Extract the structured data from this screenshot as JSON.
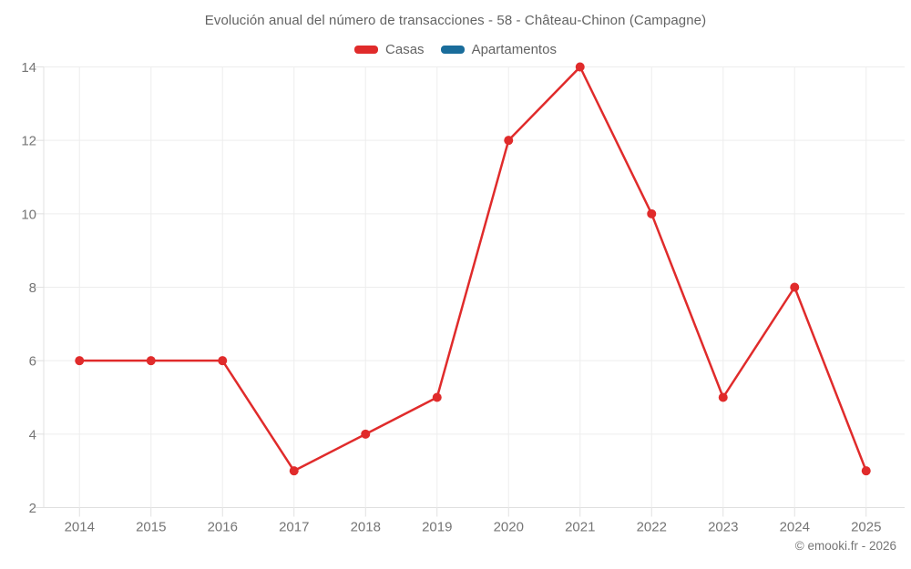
{
  "title": "Evolución anual del número de transacciones - 58 - Château-Chinon (Campagne)",
  "legend": {
    "items": [
      {
        "label": "Casas",
        "color": "#e02b2b"
      },
      {
        "label": "Apartamentos",
        "color": "#1a6d9b"
      }
    ]
  },
  "footer": {
    "copyright": "© emooki.fr - 2026"
  },
  "colors": {
    "grid": "#ededed",
    "axis_line": "#e0e0e0",
    "tick_label": "#757575",
    "title_text": "#636363"
  },
  "chart_data": {
    "type": "line",
    "title": "Evolución anual del número de transacciones - 58 - Château-Chinon (Campagne)",
    "categories": [
      "2014",
      "2015",
      "2016",
      "2017",
      "2018",
      "2019",
      "2020",
      "2021",
      "2022",
      "2023",
      "2024",
      "2025"
    ],
    "series": [
      {
        "name": "Casas",
        "color": "#e02b2b",
        "values": [
          6,
          6,
          6,
          3,
          4,
          5,
          12,
          14,
          10,
          5,
          8,
          3
        ]
      },
      {
        "name": "Apartamentos",
        "color": "#1a6d9b",
        "values": []
      }
    ],
    "xlabel": "",
    "ylabel": "",
    "ylim": [
      2,
      14
    ],
    "yticks": [
      2,
      4,
      6,
      8,
      10,
      12,
      14
    ],
    "grid": true,
    "legend_position": "top",
    "marker_radius": 5,
    "line_width": 2.5
  }
}
